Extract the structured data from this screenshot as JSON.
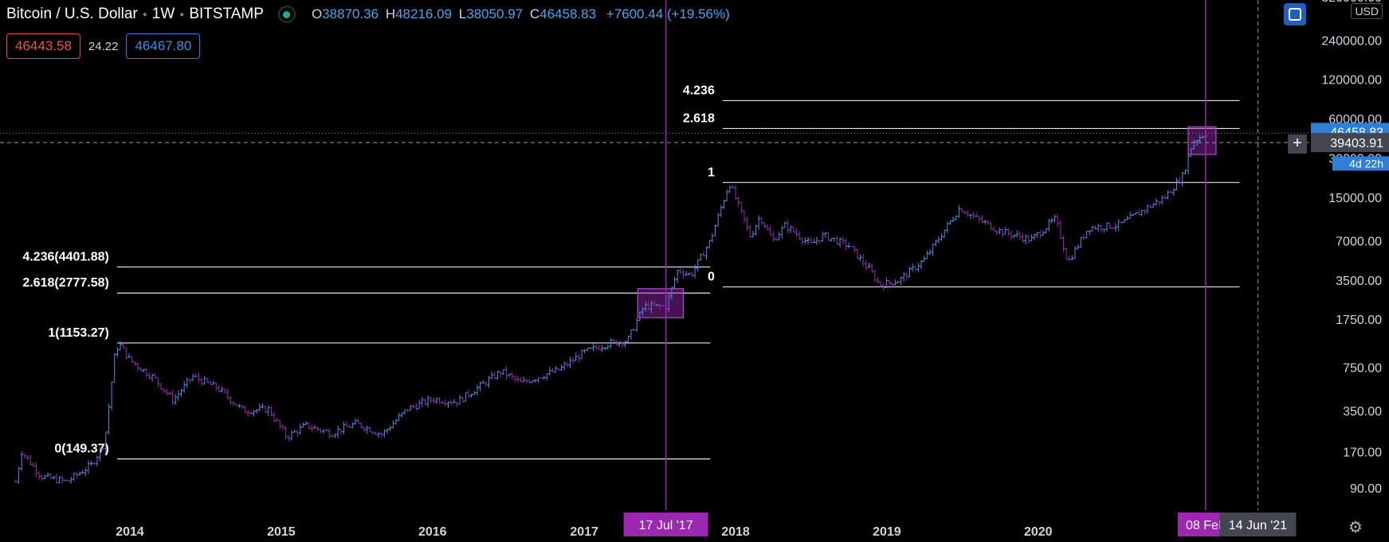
{
  "header": {
    "symbol": "Bitcoin / U.S. Dollar",
    "interval": "1W",
    "exchange": "BITSTAMP",
    "open_label": "O",
    "open": "38870.36",
    "high_label": "H",
    "high": "48216.09",
    "low_label": "L",
    "low": "38050.97",
    "close_label": "C",
    "close": "46458.83",
    "change": "+7600.44 (+19.56%)",
    "bid": "46443.58",
    "spread": "24.22",
    "ask": "46467.80",
    "currency": "USD"
  },
  "colors": {
    "background": "#000000",
    "candle_up": "#4a90e2",
    "candle_down": "#9c27b0",
    "accent_purple": "#9c27b0",
    "blue_label": "#2962ff"
  },
  "icons": {
    "status": "live-status-dot-icon",
    "layout": "layout-toggle-icon",
    "crosshair": "crosshair-plus-icon",
    "settings": "gear-icon"
  },
  "chart_data": {
    "type": "candlestick",
    "scale": "log",
    "series": [
      {
        "name": "BTCUSD weekly",
        "values": [
          {
            "x": "2013-04-01",
            "y": 100
          },
          {
            "x": "2013-04-15",
            "y": 170
          },
          {
            "x": "2013-06-01",
            "y": 110
          },
          {
            "x": "2013-08-01",
            "y": 100
          },
          {
            "x": "2013-10-01",
            "y": 135
          },
          {
            "x": "2013-11-01",
            "y": 200
          },
          {
            "x": "2013-11-25",
            "y": 900
          },
          {
            "x": "2013-12-05",
            "y": 1153
          },
          {
            "x": "2014-01-01",
            "y": 850
          },
          {
            "x": "2014-03-01",
            "y": 620
          },
          {
            "x": "2014-04-15",
            "y": 420
          },
          {
            "x": "2014-06-01",
            "y": 640
          },
          {
            "x": "2014-08-01",
            "y": 520
          },
          {
            "x": "2014-10-01",
            "y": 350
          },
          {
            "x": "2014-12-01",
            "y": 360
          },
          {
            "x": "2015-01-14",
            "y": 220
          },
          {
            "x": "2015-03-01",
            "y": 270
          },
          {
            "x": "2015-05-01",
            "y": 235
          },
          {
            "x": "2015-07-01",
            "y": 280
          },
          {
            "x": "2015-09-01",
            "y": 230
          },
          {
            "x": "2015-11-01",
            "y": 360
          },
          {
            "x": "2016-01-01",
            "y": 430
          },
          {
            "x": "2016-03-01",
            "y": 410
          },
          {
            "x": "2016-06-15",
            "y": 700
          },
          {
            "x": "2016-08-01",
            "y": 570
          },
          {
            "x": "2016-11-01",
            "y": 720
          },
          {
            "x": "2017-01-01",
            "y": 980
          },
          {
            "x": "2017-03-01",
            "y": 1150
          },
          {
            "x": "2017-04-15",
            "y": 1200
          },
          {
            "x": "2017-05-25",
            "y": 2200
          },
          {
            "x": "2017-07-17",
            "y": 2200
          },
          {
            "x": "2017-08-15",
            "y": 4200
          },
          {
            "x": "2017-09-15",
            "y": 3800
          },
          {
            "x": "2017-11-01",
            "y": 7000
          },
          {
            "x": "2017-12-17",
            "y": 19500
          },
          {
            "x": "2018-02-06",
            "y": 7500
          },
          {
            "x": "2018-03-01",
            "y": 10800
          },
          {
            "x": "2018-04-01",
            "y": 7000
          },
          {
            "x": "2018-05-01",
            "y": 9200
          },
          {
            "x": "2018-07-01",
            "y": 6500
          },
          {
            "x": "2018-08-01",
            "y": 7700
          },
          {
            "x": "2018-10-01",
            "y": 6400
          },
          {
            "x": "2018-11-20",
            "y": 4200
          },
          {
            "x": "2018-12-15",
            "y": 3200
          },
          {
            "x": "2019-02-01",
            "y": 3500
          },
          {
            "x": "2019-04-01",
            "y": 5000
          },
          {
            "x": "2019-06-26",
            "y": 12500
          },
          {
            "x": "2019-08-01",
            "y": 10500
          },
          {
            "x": "2019-10-01",
            "y": 8300
          },
          {
            "x": "2019-12-15",
            "y": 7100
          },
          {
            "x": "2020-02-12",
            "y": 10300
          },
          {
            "x": "2020-03-13",
            "y": 4800
          },
          {
            "x": "2020-05-01",
            "y": 8800
          },
          {
            "x": "2020-07-15",
            "y": 9200
          },
          {
            "x": "2020-09-01",
            "y": 11500
          },
          {
            "x": "2020-11-01",
            "y": 15000
          },
          {
            "x": "2020-12-15",
            "y": 22000
          },
          {
            "x": "2021-01-08",
            "y": 40000
          },
          {
            "x": "2021-02-08",
            "y": 46458.83
          }
        ]
      }
    ],
    "y_ticks": [
      "240000.00",
      "120000.00",
      "60000.00",
      "30000.00",
      "15000.00",
      "7000.00",
      "3500.00",
      "1750.00",
      "750.00",
      "350.00",
      "170.00",
      "90.00"
    ],
    "y_top_tick_partial": "240000.00",
    "x_ticks": [
      "2014",
      "2015",
      "2016",
      "2017",
      "2018",
      "2019",
      "2020"
    ],
    "last_price_label": "46458.83",
    "countdown_label": "4d 22h",
    "crosshair_price_label": "39403.91",
    "crosshair_line_price": 39403.91,
    "vertical_markers": [
      {
        "date": "2017-07-17",
        "label": "17 Jul '17"
      },
      {
        "date": "2021-02-08",
        "label": "08 Feb"
      }
    ],
    "future_date_label": "14 Jun '21",
    "future_date": "2021-06-14",
    "fib_sets": [
      {
        "from": "2013-12-01",
        "to": "2017-11-01",
        "levels": [
          {
            "label": "4.236(4401.88)",
            "price": 4401.88
          },
          {
            "label": "2.618(2777.58)",
            "price": 2777.58
          },
          {
            "label": "1(1153.27)",
            "price": 1153.27
          },
          {
            "label": "0(149.37)",
            "price": 149.37
          }
        ]
      },
      {
        "from": "2017-12-01",
        "to": "2021-05-01",
        "levels": [
          {
            "label": "4.236",
            "price": 82500
          },
          {
            "label": "2.618",
            "price": 50500
          },
          {
            "label": "1",
            "price": 19500
          },
          {
            "label": "0",
            "price": 3100
          }
        ]
      }
    ],
    "highlight_boxes": [
      {
        "from": "2017-05-10",
        "to": "2017-08-28",
        "price_low": 1800,
        "price_high": 3000
      },
      {
        "from": "2020-12-28",
        "to": "2021-03-05",
        "price_low": 32000,
        "price_high": 52000
      }
    ]
  }
}
